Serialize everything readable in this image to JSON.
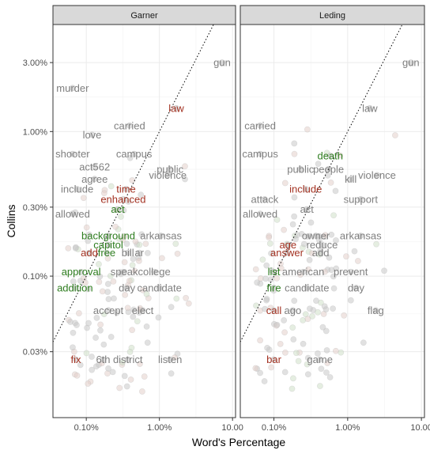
{
  "chart_data": {
    "type": "scatter",
    "xlabel": "Word's Percentage",
    "ylabel": "Collins",
    "x_scale": "log10",
    "y_scale": "log10",
    "xlim": [
      0.035,
      11
    ],
    "ylim": [
      0.0105,
      5.5
    ],
    "x_ticks": [
      {
        "value": 0.1,
        "label": "0.10%"
      },
      {
        "value": 1,
        "label": "1.00%"
      },
      {
        "value": 10,
        "label": "10.00"
      }
    ],
    "y_ticks": [
      {
        "value": 0.03,
        "label": "0.03%"
      },
      {
        "value": 0.1,
        "label": "0.10%"
      },
      {
        "value": 0.3,
        "label": "0.30%"
      },
      {
        "value": 1,
        "label": "1.00%"
      },
      {
        "value": 3,
        "label": "3.00%"
      }
    ],
    "grid": true,
    "reference_line": "y = x (dotted)",
    "colors": {
      "neutral": "#7f7f7f",
      "higher_than_collins": "#2e7d1f",
      "lower_than_collins": "#a33222",
      "point_fill": "#c8c8c8",
      "strip_fill": "#d9d9d9"
    },
    "panels": [
      {
        "title": "Garner",
        "labels": [
          {
            "text": "gun",
            "x": 7.2,
            "y": 3.0,
            "tone": "neutral"
          },
          {
            "text": "murder",
            "x": 0.065,
            "y": 2.0,
            "tone": "neutral"
          },
          {
            "text": "law",
            "x": 1.7,
            "y": 1.45,
            "tone": "lower"
          },
          {
            "text": "carried",
            "x": 0.39,
            "y": 1.1,
            "tone": "neutral"
          },
          {
            "text": "love",
            "x": 0.12,
            "y": 0.95,
            "tone": "neutral"
          },
          {
            "text": "shooter",
            "x": 0.065,
            "y": 0.7,
            "tone": "neutral"
          },
          {
            "text": "campus",
            "x": 0.45,
            "y": 0.7,
            "tone": "neutral"
          },
          {
            "text": "act562",
            "x": 0.13,
            "y": 0.57,
            "tone": "neutral"
          },
          {
            "text": "public",
            "x": 1.4,
            "y": 0.55,
            "tone": "neutral"
          },
          {
            "text": "violence",
            "x": 1.3,
            "y": 0.5,
            "tone": "neutral"
          },
          {
            "text": "agree",
            "x": 0.13,
            "y": 0.47,
            "tone": "neutral"
          },
          {
            "text": "include",
            "x": 0.075,
            "y": 0.4,
            "tone": "neutral"
          },
          {
            "text": "time",
            "x": 0.35,
            "y": 0.4,
            "tone": "lower"
          },
          {
            "text": "enhanced",
            "x": 0.32,
            "y": 0.34,
            "tone": "lower"
          },
          {
            "text": "act",
            "x": 0.27,
            "y": 0.29,
            "tone": "higher"
          },
          {
            "text": "allowed",
            "x": 0.065,
            "y": 0.27,
            "tone": "neutral"
          },
          {
            "text": "background",
            "x": 0.2,
            "y": 0.19,
            "tone": "higher"
          },
          {
            "text": "arkansas",
            "x": 1.05,
            "y": 0.19,
            "tone": "neutral"
          },
          {
            "text": "capitol",
            "x": 0.2,
            "y": 0.165,
            "tone": "higher"
          },
          {
            "text": "add",
            "x": 0.11,
            "y": 0.145,
            "tone": "lower"
          },
          {
            "text": "free",
            "x": 0.19,
            "y": 0.145,
            "tone": "higher"
          },
          {
            "text": "bill",
            "x": 0.37,
            "y": 0.145,
            "tone": "neutral"
          },
          {
            "text": "ar",
            "x": 0.53,
            "y": 0.145,
            "tone": "neutral"
          },
          {
            "text": "approval",
            "x": 0.085,
            "y": 0.107,
            "tone": "higher"
          },
          {
            "text": "speak",
            "x": 0.33,
            "y": 0.107,
            "tone": "neutral"
          },
          {
            "text": "college",
            "x": 0.85,
            "y": 0.107,
            "tone": "neutral"
          },
          {
            "text": "addition",
            "x": 0.07,
            "y": 0.083,
            "tone": "higher"
          },
          {
            "text": "day",
            "x": 0.36,
            "y": 0.083,
            "tone": "neutral"
          },
          {
            "text": "candidate",
            "x": 1.0,
            "y": 0.083,
            "tone": "neutral"
          },
          {
            "text": "accept",
            "x": 0.2,
            "y": 0.058,
            "tone": "neutral"
          },
          {
            "text": "elect",
            "x": 0.59,
            "y": 0.058,
            "tone": "neutral"
          },
          {
            "text": "fix",
            "x": 0.072,
            "y": 0.0265,
            "tone": "lower"
          },
          {
            "text": "6th",
            "x": 0.17,
            "y": 0.0265,
            "tone": "neutral"
          },
          {
            "text": "district",
            "x": 0.37,
            "y": 0.0265,
            "tone": "neutral"
          },
          {
            "text": "listen",
            "x": 1.4,
            "y": 0.0265,
            "tone": "neutral"
          }
        ]
      },
      {
        "title": "Leding",
        "labels": [
          {
            "text": "gun",
            "x": 7.2,
            "y": 3.0,
            "tone": "neutral"
          },
          {
            "text": "law",
            "x": 2.0,
            "y": 1.45,
            "tone": "neutral"
          },
          {
            "text": "carried",
            "x": 0.065,
            "y": 1.1,
            "tone": "neutral"
          },
          {
            "text": "campus",
            "x": 0.065,
            "y": 0.7,
            "tone": "neutral"
          },
          {
            "text": "death",
            "x": 0.58,
            "y": 0.68,
            "tone": "higher"
          },
          {
            "text": "public",
            "x": 0.23,
            "y": 0.55,
            "tone": "neutral"
          },
          {
            "text": "people",
            "x": 0.55,
            "y": 0.55,
            "tone": "neutral"
          },
          {
            "text": "violence",
            "x": 2.5,
            "y": 0.5,
            "tone": "neutral"
          },
          {
            "text": "kill",
            "x": 1.1,
            "y": 0.47,
            "tone": "neutral"
          },
          {
            "text": "include",
            "x": 0.27,
            "y": 0.4,
            "tone": "lower"
          },
          {
            "text": "attack",
            "x": 0.075,
            "y": 0.34,
            "tone": "neutral"
          },
          {
            "text": "support",
            "x": 1.5,
            "y": 0.34,
            "tone": "neutral"
          },
          {
            "text": "act",
            "x": 0.28,
            "y": 0.29,
            "tone": "neutral"
          },
          {
            "text": "allowed",
            "x": 0.065,
            "y": 0.27,
            "tone": "neutral"
          },
          {
            "text": "owner",
            "x": 0.37,
            "y": 0.19,
            "tone": "neutral"
          },
          {
            "text": "arkansas",
            "x": 1.5,
            "y": 0.19,
            "tone": "neutral"
          },
          {
            "text": "age",
            "x": 0.155,
            "y": 0.165,
            "tone": "lower"
          },
          {
            "text": "reduce",
            "x": 0.45,
            "y": 0.165,
            "tone": "neutral"
          },
          {
            "text": "answer",
            "x": 0.15,
            "y": 0.145,
            "tone": "lower"
          },
          {
            "text": "add",
            "x": 0.43,
            "y": 0.145,
            "tone": "neutral"
          },
          {
            "text": "list",
            "x": 0.1,
            "y": 0.107,
            "tone": "higher"
          },
          {
            "text": "american",
            "x": 0.25,
            "y": 0.107,
            "tone": "neutral"
          },
          {
            "text": "prevent",
            "x": 1.1,
            "y": 0.107,
            "tone": "neutral"
          },
          {
            "text": "fire",
            "x": 0.1,
            "y": 0.083,
            "tone": "higher"
          },
          {
            "text": "candidate",
            "x": 0.28,
            "y": 0.083,
            "tone": "neutral"
          },
          {
            "text": "day",
            "x": 1.3,
            "y": 0.083,
            "tone": "neutral"
          },
          {
            "text": "call",
            "x": 0.1,
            "y": 0.058,
            "tone": "lower"
          },
          {
            "text": "ago",
            "x": 0.18,
            "y": 0.058,
            "tone": "neutral"
          },
          {
            "text": "flag",
            "x": 2.4,
            "y": 0.058,
            "tone": "neutral"
          },
          {
            "text": "bar",
            "x": 0.1,
            "y": 0.0265,
            "tone": "lower"
          },
          {
            "text": "game",
            "x": 0.42,
            "y": 0.0265,
            "tone": "neutral"
          }
        ]
      }
    ]
  }
}
